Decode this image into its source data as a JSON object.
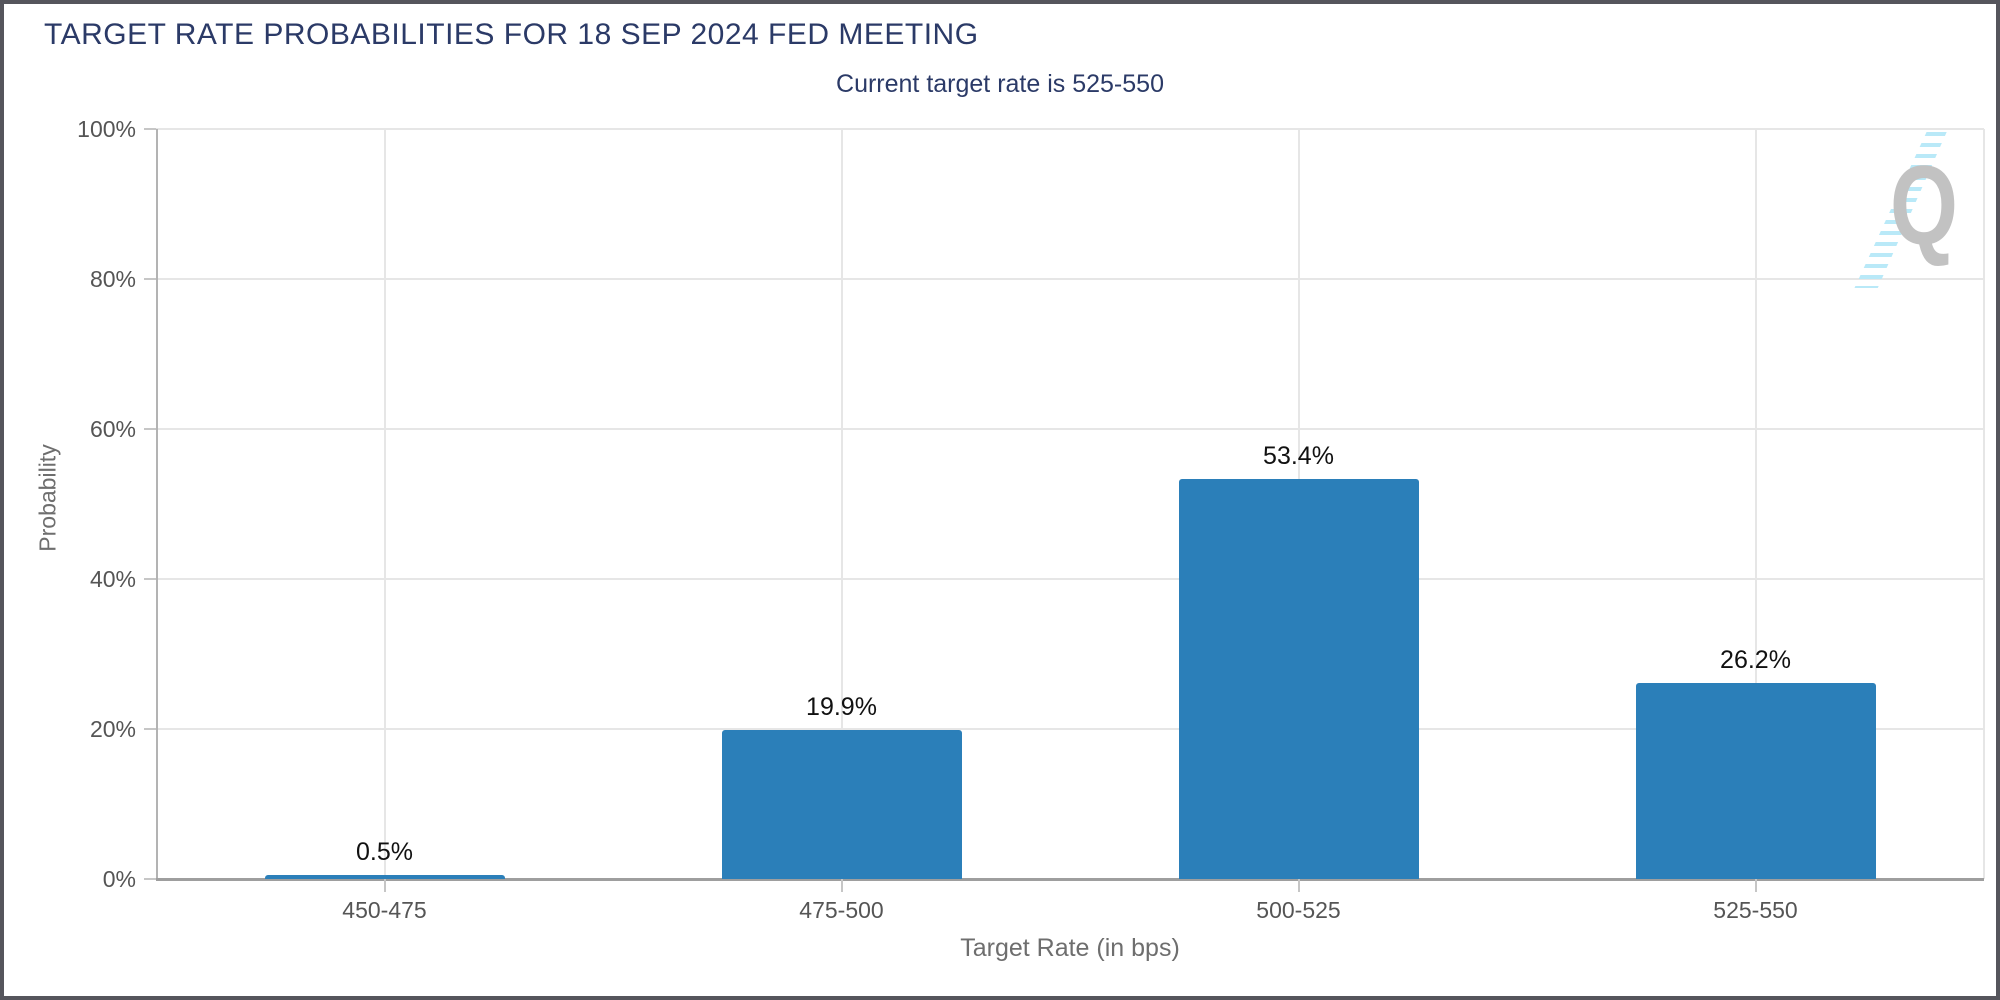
{
  "window": {
    "title": "TARGET RATE PROBABILITIES FOR 18 SEP 2024 FED MEETING",
    "subtitle": "Current target rate is 525-550"
  },
  "chart_data": {
    "type": "bar",
    "title": "TARGET RATE PROBABILITIES FOR 18 SEP 2024 FED MEETING",
    "subtitle": "Current target rate is 525-550",
    "categories": [
      "450-475",
      "475-500",
      "500-525",
      "525-550"
    ],
    "values": [
      0.5,
      19.9,
      53.4,
      26.2
    ],
    "value_labels": [
      "0.5%",
      "19.9%",
      "53.4%",
      "26.2%"
    ],
    "xlabel": "Target Rate (in bps)",
    "ylabel": "Probability",
    "ylim": [
      0,
      100
    ],
    "yticks": [
      0,
      20,
      40,
      60,
      80,
      100
    ],
    "ytick_labels": [
      "0%",
      "20%",
      "40%",
      "60%",
      "80%",
      "100%"
    ],
    "grid": true,
    "legend": "none",
    "bar_color": "#2b7fb9"
  },
  "watermark": {
    "letter": "Q"
  },
  "colors": {
    "title_navy": "#2b3a67",
    "bar_blue": "#2b7fb9",
    "value_label": "#111111",
    "tick_label": "#555555",
    "axis_title": "#6e6e6e",
    "gridline": "#e6e6e6",
    "axis_line": "#9e9e9e",
    "minor_tick": "#c6c6c6",
    "watermark_gray": "#c2c2c2",
    "watermark_blue": "#b9e9f8"
  }
}
